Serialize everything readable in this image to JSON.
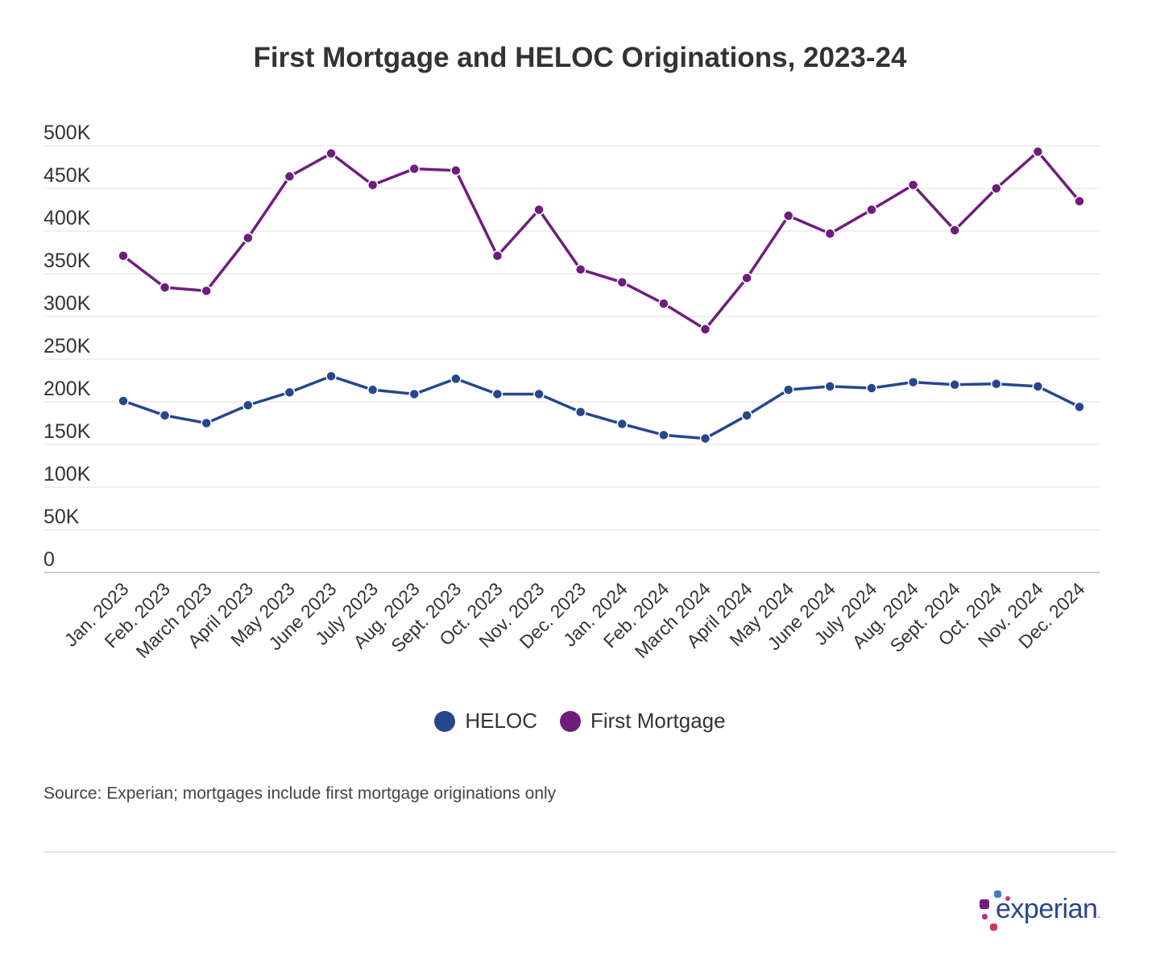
{
  "chart_data": {
    "type": "line",
    "title": "First Mortgage and HELOC Originations, 2023-24",
    "categories": [
      "Jan. 2023",
      "Feb. 2023",
      "March 2023",
      "April 2023",
      "May 2023",
      "June 2023",
      "July 2023",
      "Aug. 2023",
      "Sept. 2023",
      "Oct. 2023",
      "Nov. 2023",
      "Dec. 2023",
      "Jan. 2024",
      "Feb. 2024",
      "March 2024",
      "April 2024",
      "May 2024",
      "June 2024",
      "July 2024",
      "Aug. 2024",
      "Sept. 2024",
      "Oct. 2024",
      "Nov. 2024",
      "Dec. 2024"
    ],
    "series": [
      {
        "name": "HELOC",
        "color": "#26478d",
        "values": [
          201000,
          184000,
          175000,
          196000,
          211000,
          230000,
          214000,
          209000,
          227000,
          209000,
          209000,
          188000,
          174000,
          161000,
          157000,
          184000,
          214000,
          218000,
          216000,
          223000,
          220000,
          221000,
          218000,
          194000
        ]
      },
      {
        "name": "First Mortgage",
        "color": "#6f1d7c",
        "values": [
          371000,
          334000,
          330000,
          392000,
          464000,
          491000,
          454000,
          473000,
          471000,
          371000,
          425000,
          355000,
          340000,
          315000,
          285000,
          345000,
          418000,
          397000,
          425000,
          454000,
          401000,
          450000,
          493000,
          435000
        ]
      }
    ],
    "ylim": [
      0,
      500000
    ],
    "yticks": [
      0,
      50000,
      100000,
      150000,
      200000,
      250000,
      300000,
      350000,
      400000,
      450000,
      500000
    ],
    "ytick_labels": [
      "0",
      "50K",
      "100K",
      "150K",
      "200K",
      "250K",
      "300K",
      "350K",
      "400K",
      "450K",
      "500K"
    ],
    "xlabel": "",
    "ylabel": "",
    "grid": true,
    "legend_position": "bottom"
  },
  "source": "Source: Experian; mortgages include first mortgage originations only",
  "logo": "experian."
}
